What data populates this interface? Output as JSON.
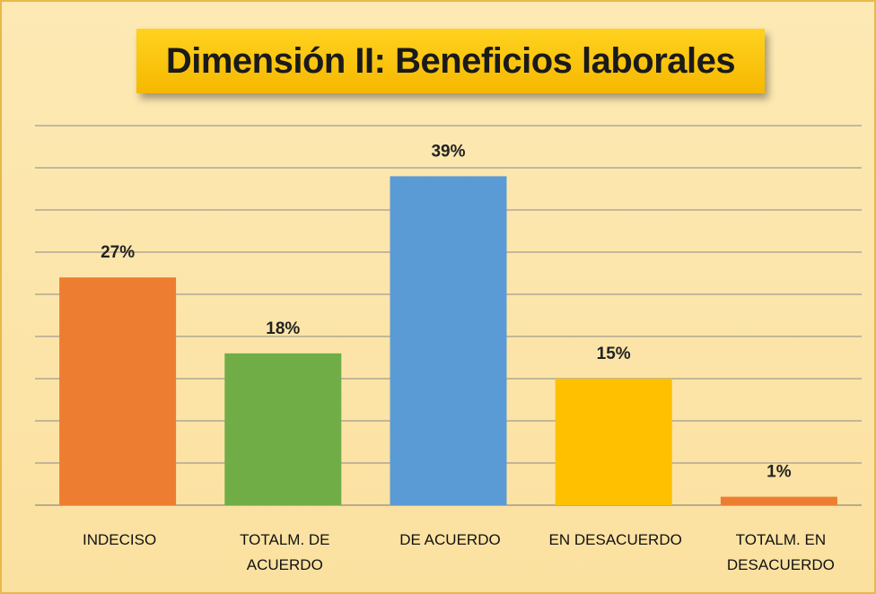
{
  "chart_data": {
    "type": "bar",
    "title": "Dimensión II: Beneficios laborales",
    "categories": [
      "INDECISO",
      "TOTALM. DE ACUERDO",
      "DE ACUERDO",
      "EN DESACUERDO",
      "TOTALM. EN DESACUERDO"
    ],
    "values": [
      27,
      18,
      39,
      15,
      1
    ],
    "value_labels": [
      "27%",
      "18%",
      "39%",
      "15%",
      "1%"
    ],
    "colors": [
      "#ed7d31",
      "#70ad47",
      "#5b9bd5",
      "#ffc000",
      "#ed7d31"
    ],
    "ylim": [
      0,
      45
    ],
    "yticks": [
      0,
      5,
      10,
      15,
      20,
      25,
      30,
      35,
      40,
      45
    ],
    "grid": true
  }
}
